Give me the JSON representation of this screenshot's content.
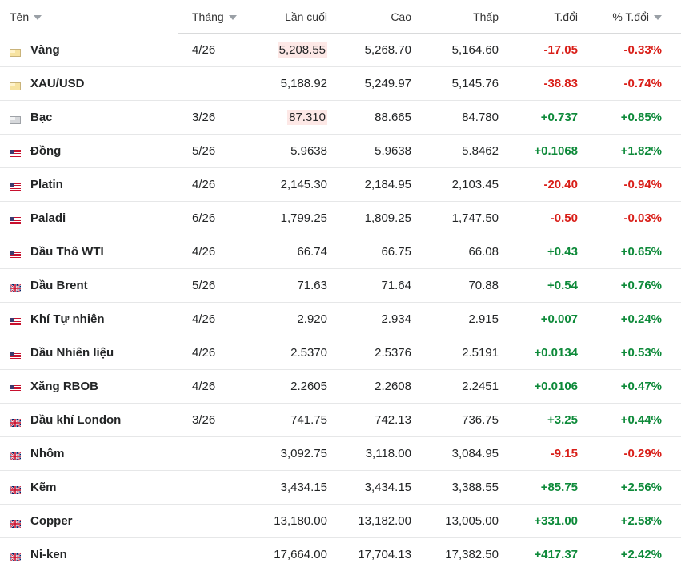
{
  "columns": {
    "name": "Tên",
    "month": "Tháng",
    "last": "Lần cuối",
    "high": "Cao",
    "low": "Thấp",
    "chg": "T.đổi",
    "pct": "% T.đổi"
  },
  "colors": {
    "positive": "#0e8a3a",
    "negative": "#d91e18",
    "highlight_down": "#fde8e6"
  },
  "rows": [
    {
      "name": "Vàng",
      "flag": "gold",
      "month": "4/26",
      "last": "5,208.55",
      "last_flash": "down",
      "high": "5,268.70",
      "low": "5,164.60",
      "chg": "-17.05",
      "pct": "-0.33%",
      "dir": "neg"
    },
    {
      "name": "XAU/USD",
      "flag": "gold",
      "month": "",
      "last": "5,188.92",
      "last_flash": "",
      "high": "5,249.97",
      "low": "5,145.76",
      "chg": "-38.83",
      "pct": "-0.74%",
      "dir": "neg"
    },
    {
      "name": "Bạc",
      "flag": "silver",
      "month": "3/26",
      "last": "87.310",
      "last_flash": "down",
      "high": "88.665",
      "low": "84.780",
      "chg": "+0.737",
      "pct": "+0.85%",
      "dir": "pos"
    },
    {
      "name": "Đồng",
      "flag": "us",
      "month": "5/26",
      "last": "5.9638",
      "last_flash": "",
      "high": "5.9638",
      "low": "5.8462",
      "chg": "+0.1068",
      "pct": "+1.82%",
      "dir": "pos"
    },
    {
      "name": "Platin",
      "flag": "us",
      "month": "4/26",
      "last": "2,145.30",
      "last_flash": "",
      "high": "2,184.95",
      "low": "2,103.45",
      "chg": "-20.40",
      "pct": "-0.94%",
      "dir": "neg"
    },
    {
      "name": "Paladi",
      "flag": "us",
      "month": "6/26",
      "last": "1,799.25",
      "last_flash": "",
      "high": "1,809.25",
      "low": "1,747.50",
      "chg": "-0.50",
      "pct": "-0.03%",
      "dir": "neg"
    },
    {
      "name": "Dầu Thô WTI",
      "flag": "us",
      "month": "4/26",
      "last": "66.74",
      "last_flash": "",
      "high": "66.75",
      "low": "66.08",
      "chg": "+0.43",
      "pct": "+0.65%",
      "dir": "pos"
    },
    {
      "name": "Dầu Brent",
      "flag": "uk",
      "month": "5/26",
      "last": "71.63",
      "last_flash": "",
      "high": "71.64",
      "low": "70.88",
      "chg": "+0.54",
      "pct": "+0.76%",
      "dir": "pos"
    },
    {
      "name": "Khí Tự nhiên",
      "flag": "us",
      "month": "4/26",
      "last": "2.920",
      "last_flash": "",
      "high": "2.934",
      "low": "2.915",
      "chg": "+0.007",
      "pct": "+0.24%",
      "dir": "pos"
    },
    {
      "name": "Dầu Nhiên liệu",
      "flag": "us",
      "month": "4/26",
      "last": "2.5370",
      "last_flash": "",
      "high": "2.5376",
      "low": "2.5191",
      "chg": "+0.0134",
      "pct": "+0.53%",
      "dir": "pos"
    },
    {
      "name": "Xăng RBOB",
      "flag": "us",
      "month": "4/26",
      "last": "2.2605",
      "last_flash": "",
      "high": "2.2608",
      "low": "2.2451",
      "chg": "+0.0106",
      "pct": "+0.47%",
      "dir": "pos"
    },
    {
      "name": "Dầu khí London",
      "flag": "uk",
      "month": "3/26",
      "last": "741.75",
      "last_flash": "",
      "high": "742.13",
      "low": "736.75",
      "chg": "+3.25",
      "pct": "+0.44%",
      "dir": "pos"
    },
    {
      "name": "Nhôm",
      "flag": "uk",
      "month": "",
      "last": "3,092.75",
      "last_flash": "",
      "high": "3,118.00",
      "low": "3,084.95",
      "chg": "-9.15",
      "pct": "-0.29%",
      "dir": "neg"
    },
    {
      "name": "Kẽm",
      "flag": "uk",
      "month": "",
      "last": "3,434.15",
      "last_flash": "",
      "high": "3,434.15",
      "low": "3,388.55",
      "chg": "+85.75",
      "pct": "+2.56%",
      "dir": "pos"
    },
    {
      "name": "Copper",
      "flag": "uk",
      "month": "",
      "last": "13,180.00",
      "last_flash": "",
      "high": "13,182.00",
      "low": "13,005.00",
      "chg": "+331.00",
      "pct": "+2.58%",
      "dir": "pos"
    },
    {
      "name": "Ni-ken",
      "flag": "uk",
      "month": "",
      "last": "17,664.00",
      "last_flash": "",
      "high": "17,704.13",
      "low": "17,382.50",
      "chg": "+417.37",
      "pct": "+2.42%",
      "dir": "pos"
    }
  ]
}
